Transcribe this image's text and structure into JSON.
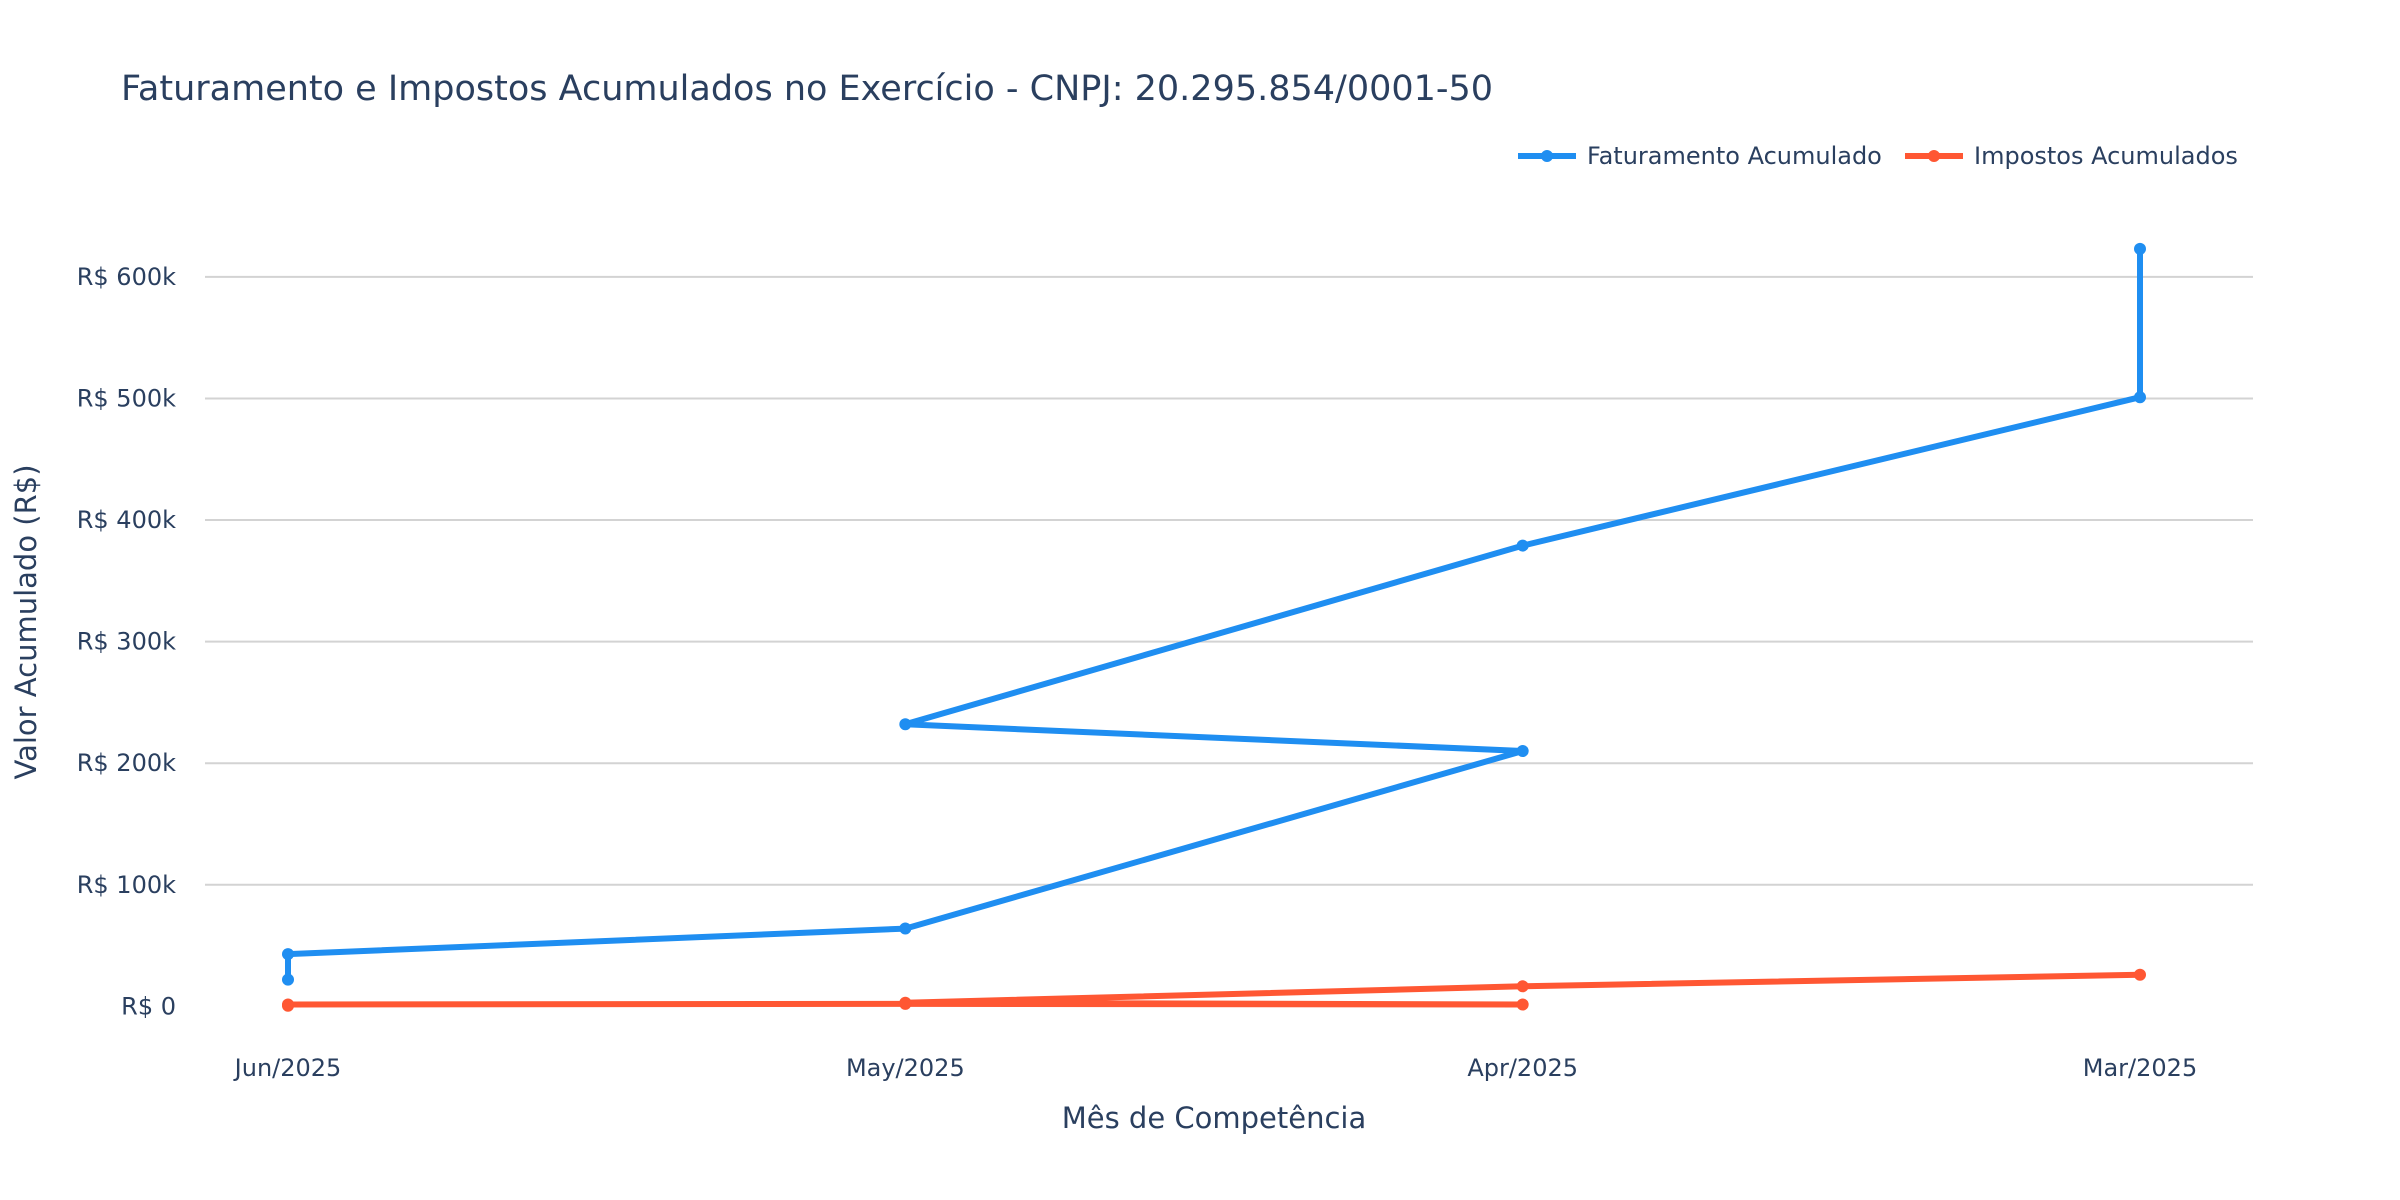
{
  "chart_data": {
    "type": "line",
    "title": "Faturamento e Impostos Acumulados no Exercício - CNPJ: 20.295.854/0001-50",
    "xlabel": "Mês de Competência",
    "ylabel": "Valor Acumulado (R$)",
    "categories": [
      "Jun/2025",
      "May/2025",
      "Apr/2025",
      "Mar/2025"
    ],
    "y_ticks": [
      {
        "value": 0,
        "label": "R$ 0"
      },
      {
        "value": 100000,
        "label": "R$ 100k"
      },
      {
        "value": 200000,
        "label": "R$ 200k"
      },
      {
        "value": 300000,
        "label": "R$ 300k"
      },
      {
        "value": 400000,
        "label": "R$ 400k"
      },
      {
        "value": 500000,
        "label": "R$ 500k"
      },
      {
        "value": 600000,
        "label": "R$ 600k"
      }
    ],
    "ylim": [
      -40000,
      655000
    ],
    "grid": true,
    "legend_position": "top-right",
    "series": [
      {
        "name": "Faturamento Acumulado",
        "color": "#1f8ef1",
        "points": [
          {
            "x": "Jun/2025",
            "y": 22000
          },
          {
            "x": "Jun/2025",
            "y": 43000
          },
          {
            "x": "May/2025",
            "y": 64000
          },
          {
            "x": "Apr/2025",
            "y": 210000
          },
          {
            "x": "May/2025",
            "y": 232000
          },
          {
            "x": "Apr/2025",
            "y": 379000
          },
          {
            "x": "Mar/2025",
            "y": 501000
          },
          {
            "x": "Mar/2025",
            "y": 623000
          }
        ]
      },
      {
        "name": "Impostos Acumulados",
        "color": "#ff5733",
        "points": [
          {
            "x": "Jun/2025",
            "y": 500
          },
          {
            "x": "Jun/2025",
            "y": 1500
          },
          {
            "x": "May/2025",
            "y": 2000
          },
          {
            "x": "Apr/2025",
            "y": 1500
          },
          {
            "x": "May/2025",
            "y": 3000
          },
          {
            "x": "Apr/2025",
            "y": 16500
          },
          {
            "x": "Mar/2025",
            "y": 26000
          }
        ]
      }
    ]
  }
}
